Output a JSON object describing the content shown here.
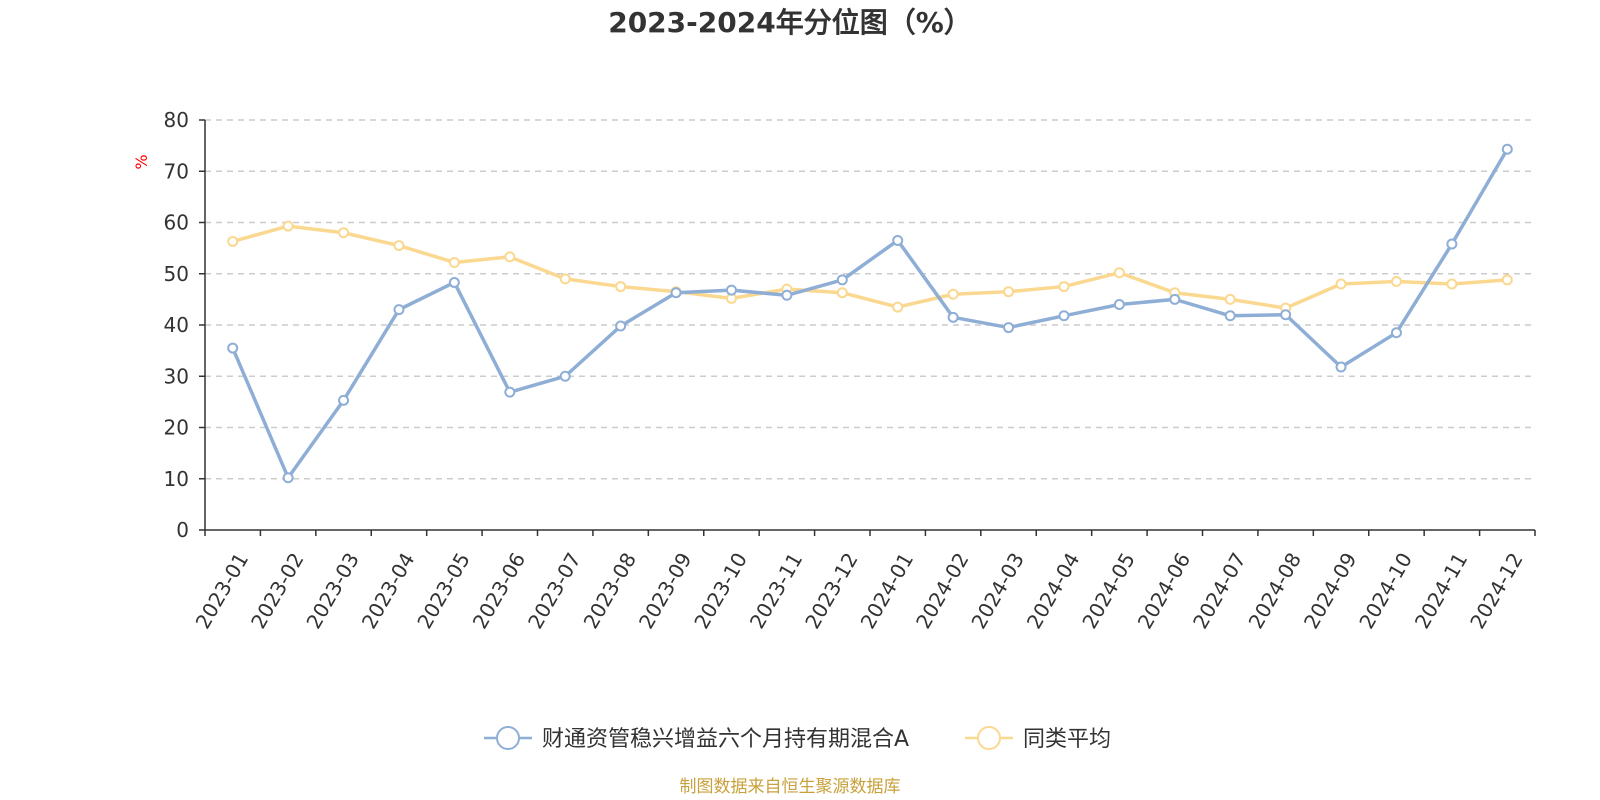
{
  "chart_data": {
    "type": "line",
    "title": "2023-2024年分位图（%）",
    "ylabel": "%",
    "xlabel": "",
    "ylim": [
      0,
      80
    ],
    "yticks": [
      0,
      10,
      20,
      30,
      40,
      50,
      60,
      70,
      80
    ],
    "grid": true,
    "legend_position": "bottom",
    "categories": [
      "2023-01",
      "2023-02",
      "2023-03",
      "2023-04",
      "2023-05",
      "2023-06",
      "2023-07",
      "2023-08",
      "2023-09",
      "2023-10",
      "2023-11",
      "2023-12",
      "2024-01",
      "2024-02",
      "2024-03",
      "2024-04",
      "2024-05",
      "2024-06",
      "2024-07",
      "2024-08",
      "2024-09",
      "2024-10",
      "2024-11",
      "2024-12"
    ],
    "series": [
      {
        "name": "财通资管稳兴增益六个月持有期混合A",
        "color": "#8eaed6",
        "values": [
          35.5,
          10.2,
          25.3,
          43.0,
          48.3,
          26.9,
          30.0,
          39.8,
          46.3,
          46.8,
          45.8,
          48.8,
          56.5,
          41.5,
          39.5,
          41.8,
          44.0,
          45.0,
          41.8,
          42.0,
          31.8,
          38.5,
          55.8,
          74.3
        ]
      },
      {
        "name": "同类平均",
        "color": "#fbd890",
        "values": [
          56.3,
          59.3,
          58.0,
          55.5,
          52.2,
          53.3,
          49.0,
          47.5,
          46.5,
          45.2,
          47.0,
          46.3,
          43.5,
          46.0,
          46.5,
          47.5,
          50.2,
          46.3,
          45.0,
          43.3,
          48.0,
          48.5,
          48.0,
          48.8
        ]
      }
    ]
  },
  "source_text": "制图数据来自恒生聚源数据库"
}
